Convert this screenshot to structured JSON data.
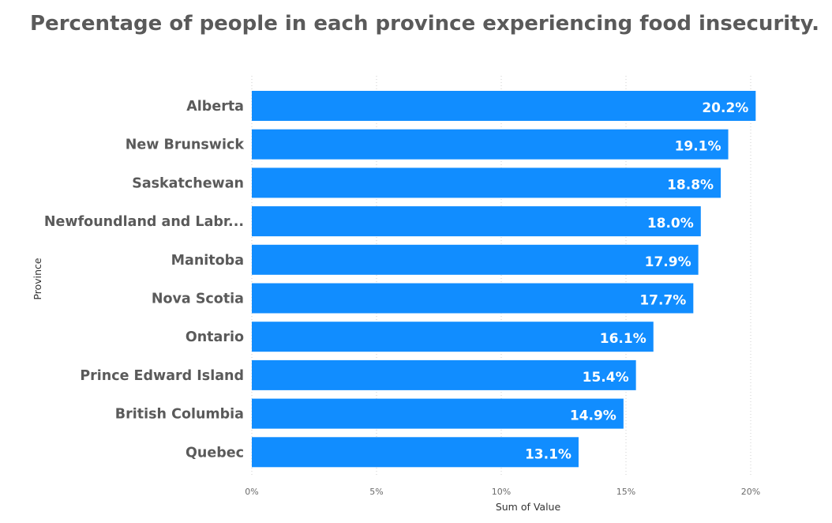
{
  "chart_data": {
    "type": "bar",
    "orientation": "horizontal",
    "title": "Percentage of people in each province experiencing food insecurity.",
    "xlabel": "Sum of Value",
    "ylabel": "Province",
    "categories": [
      "Alberta",
      "New Brunswick",
      "Saskatchewan",
      "Newfoundland and Labr...",
      "Manitoba",
      "Nova Scotia",
      "Ontario",
      "Prince Edward Island",
      "British Columbia",
      "Quebec"
    ],
    "values": [
      20.2,
      19.1,
      18.8,
      18.0,
      17.9,
      17.7,
      16.1,
      15.4,
      14.9,
      13.1
    ],
    "data_labels": [
      "20.2%",
      "19.1%",
      "18.8%",
      "18.0%",
      "17.9%",
      "17.7%",
      "16.1%",
      "15.4%",
      "14.9%",
      "13.1%"
    ],
    "xlim": [
      0,
      20.7
    ],
    "x_ticks": [
      0,
      5,
      10,
      15,
      20
    ],
    "x_tick_labels": [
      "0%",
      "5%",
      "10%",
      "15%",
      "20%"
    ],
    "grid": true,
    "bar_color": "#118DFF"
  }
}
